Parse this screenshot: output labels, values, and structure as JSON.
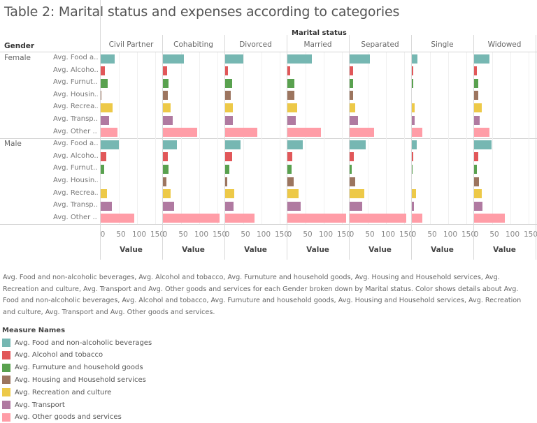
{
  "chart_data": {
    "type": "bar",
    "orientation": "horizontal",
    "title": "Table 2: Marital status and expenses according to categories",
    "column_group_label": "Marital status",
    "row_group_label": "Gender",
    "columns": [
      "Civil Partner",
      "Cohabiting",
      "Divorced",
      "Married",
      "Separated",
      "Single",
      "Widowed"
    ],
    "genders": [
      "Female",
      "Male"
    ],
    "measures": [
      {
        "short": "Avg. Food a..",
        "name": "Avg. Food and non-alcoholic beverages",
        "color": "#76b7b2"
      },
      {
        "short": "Avg. Alcoho..",
        "name": "Avg. Alcohol and tobacco",
        "color": "#e15759"
      },
      {
        "short": "Avg. Furnut..",
        "name": "Avg. Furnuture and household goods",
        "color": "#59a14f"
      },
      {
        "short": "Avg. Housin..",
        "name": "Avg. Housing and Household services",
        "color": "#9c755f"
      },
      {
        "short": "Avg. Recrea..",
        "name": "Avg. Recreation and culture",
        "color": "#edc948"
      },
      {
        "short": "Avg. Transp..",
        "name": "Avg. Transport",
        "color": "#b07aa1"
      },
      {
        "short": "Avg. Other ..",
        "name": "Avg. Other goods and services",
        "color": "#ff9da7"
      }
    ],
    "values": {
      "Female": {
        "Civil Partner": [
          38,
          11,
          19,
          2,
          33,
          24,
          47
        ],
        "Cohabiting": [
          57,
          11,
          16,
          14,
          21,
          26,
          95
        ],
        "Divorced": [
          50,
          8,
          19,
          15,
          22,
          22,
          89
        ],
        "Married": [
          68,
          8,
          19,
          19,
          27,
          24,
          92
        ],
        "Separated": [
          55,
          10,
          10,
          10,
          15,
          24,
          67
        ],
        "Single": [
          16,
          3,
          4,
          0,
          8,
          8,
          28
        ],
        "Widowed": [
          43,
          7,
          11,
          11,
          21,
          15,
          42
        ]
      },
      "Male": {
        "Civil Partner": [
          50,
          16,
          10,
          0,
          18,
          31,
          93
        ],
        "Cohabiting": [
          38,
          14,
          16,
          10,
          21,
          30,
          156
        ],
        "Divorced": [
          43,
          19,
          11,
          6,
          25,
          23,
          80
        ],
        "Married": [
          42,
          13,
          12,
          17,
          30,
          37,
          162
        ],
        "Separated": [
          44,
          12,
          6,
          15,
          41,
          34,
          155
        ],
        "Single": [
          13,
          4,
          2,
          0,
          12,
          6,
          28
        ],
        "Widowed": [
          48,
          12,
          7,
          13,
          21,
          23,
          85
        ]
      }
    },
    "xlabel": "Value",
    "xticks": [
      0,
      50,
      100,
      150
    ],
    "xlim": [
      0,
      170
    ],
    "grid": true,
    "legend_position": "bottom-left"
  },
  "caption": "Avg. Food and non-alcoholic beverages, Avg. Alcohol and tobacco, Avg. Furnuture and household goods, Avg. Housing and Household services, Avg. Recreation and culture, Avg. Transport and Avg. Other goods and services for each Gender broken down by Marital status.  Color shows details about Avg. Food and non-alcoholic beverages, Avg. Alcohol and tobacco, Avg. Furnuture and household goods, Avg. Housing and Household services, Avg. Recreation and culture, Avg. Transport and Avg. Other goods and services.",
  "legend": {
    "title": "Measure Names"
  }
}
